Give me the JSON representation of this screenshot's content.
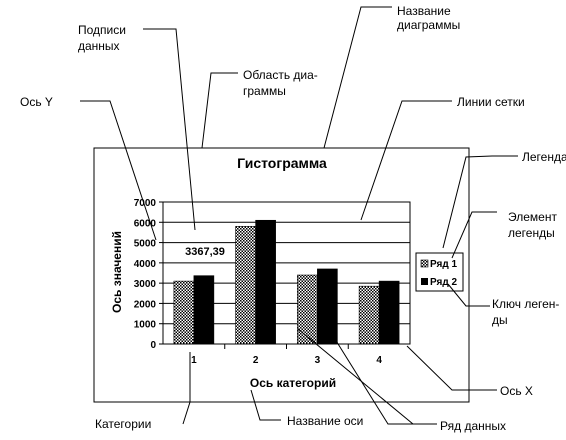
{
  "annotations": {
    "data_labels": [
      "Подписи",
      "данных"
    ],
    "chart_title_name": [
      "Название",
      "диаграммы"
    ],
    "chart_area": [
      "Область диа-",
      "граммы"
    ],
    "y_axis": "Ось Y",
    "gridlines": "Линии сетки",
    "legend": "Легенда",
    "legend_entry": [
      "Элемент",
      "легенды"
    ],
    "legend_key": [
      "Ключ леген-",
      "ды"
    ],
    "x_axis": "Ось X",
    "categories": "Категории",
    "axis_title": "Название оси",
    "data_series": "Ряд данных"
  },
  "chart_data": {
    "type": "bar",
    "title": "Гистограмма",
    "xlabel": "Ось категорий",
    "ylabel": "Ось значений",
    "categories": [
      "1",
      "2",
      "3",
      "4"
    ],
    "series": [
      {
        "name": "Ряд 1",
        "values": [
          3100,
          5800,
          3400,
          2850
        ],
        "pattern": "checker"
      },
      {
        "name": "Ряд 2",
        "values": [
          3367.39,
          6100,
          3700,
          3100
        ],
        "pattern": "solid"
      }
    ],
    "ylim": [
      0,
      7000
    ],
    "yticks": [
      "0",
      "1000",
      "2000",
      "3000",
      "4000",
      "5000",
      "6000",
      "7000"
    ],
    "data_label": "3367,39",
    "grid": true,
    "legend_position": "right",
    "colors": {
      "solid": "#000000",
      "checker_dark": "#000000",
      "checker_light": "#ffffff"
    }
  }
}
